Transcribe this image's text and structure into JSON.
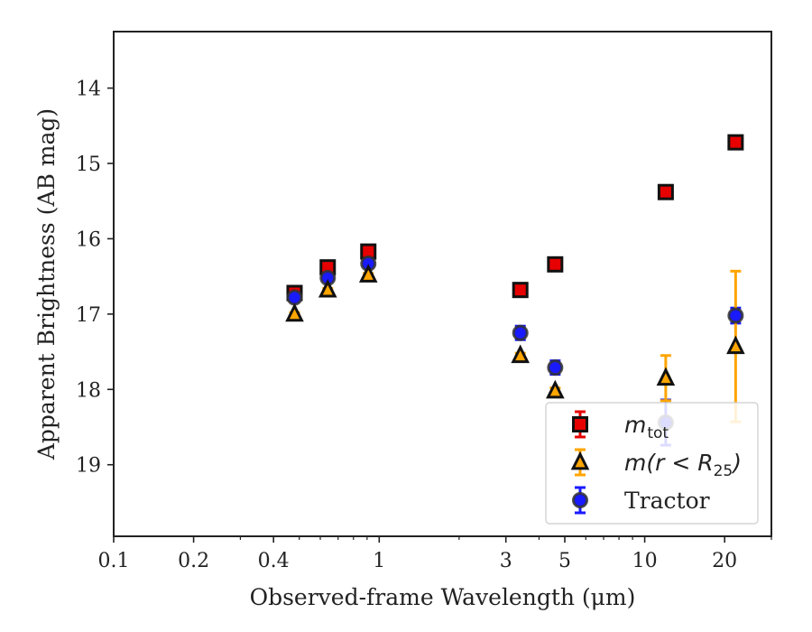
{
  "chart_data": {
    "type": "scatter",
    "xlabel": "Observed-frame Wavelength (μm)",
    "ylabel": "Apparent Brightness (AB mag)",
    "xscale": "log",
    "xlim": [
      0.1,
      30
    ],
    "ylim": [
      19.95,
      13.25
    ],
    "y_inverted": true,
    "x_ticks": [
      {
        "value": 0.1,
        "label": "0.1"
      },
      {
        "value": 0.2,
        "label": "0.2"
      },
      {
        "value": 0.4,
        "label": "0.4"
      },
      {
        "value": 1,
        "label": "1"
      },
      {
        "value": 3,
        "label": "3"
      },
      {
        "value": 5,
        "label": "5"
      },
      {
        "value": 10,
        "label": "10"
      },
      {
        "value": 20,
        "label": "20"
      }
    ],
    "x_minor_ticks": [
      0.3,
      0.5,
      0.6,
      0.7,
      0.8,
      0.9,
      2,
      4,
      6,
      7,
      8,
      9,
      30
    ],
    "y_ticks": [
      {
        "value": 14,
        "label": "14"
      },
      {
        "value": 15,
        "label": "15"
      },
      {
        "value": 16,
        "label": "16"
      },
      {
        "value": 17,
        "label": "17"
      },
      {
        "value": 18,
        "label": "18"
      },
      {
        "value": 19,
        "label": "19"
      }
    ],
    "legend_position": "lower-right",
    "series": [
      {
        "name": "m_tot",
        "marker": "square",
        "color": "#e60000",
        "edge_color": "#111111",
        "points": [
          {
            "x": 0.48,
            "y": 16.72,
            "err": 0.02
          },
          {
            "x": 0.64,
            "y": 16.38,
            "err": 0.02
          },
          {
            "x": 0.91,
            "y": 16.17,
            "err": 0.02
          },
          {
            "x": 3.4,
            "y": 16.68,
            "err": 0.02
          },
          {
            "x": 4.6,
            "y": 16.34,
            "err": 0.03
          },
          {
            "x": 12,
            "y": 15.38,
            "err": 0.04
          },
          {
            "x": 22,
            "y": 14.72,
            "err": 0.04
          }
        ]
      },
      {
        "name": "m(r<R25)",
        "marker": "triangle",
        "color": "#ffa500",
        "edge_color": "#111111",
        "points": [
          {
            "x": 0.48,
            "y": 17.0,
            "err": 0.02
          },
          {
            "x": 0.64,
            "y": 16.68,
            "err": 0.02
          },
          {
            "x": 0.91,
            "y": 16.48,
            "err": 0.02
          },
          {
            "x": 3.4,
            "y": 17.55,
            "err": 0.03
          },
          {
            "x": 4.6,
            "y": 18.02,
            "err": 0.04
          },
          {
            "x": 12,
            "y": 17.85,
            "err": 0.3
          },
          {
            "x": 22,
            "y": 17.43,
            "err": 1.0
          }
        ]
      },
      {
        "name": "Tractor",
        "marker": "circle",
        "color": "#1a1aff",
        "edge_color": "#333333",
        "points": [
          {
            "x": 0.48,
            "y": 16.78,
            "err": 0.03
          },
          {
            "x": 0.64,
            "y": 16.52,
            "err": 0.03
          },
          {
            "x": 0.91,
            "y": 16.33,
            "err": 0.03
          },
          {
            "x": 3.4,
            "y": 17.25,
            "err": 0.09
          },
          {
            "x": 4.6,
            "y": 17.71,
            "err": 0.09
          },
          {
            "x": 12,
            "y": 18.44,
            "err": 0.3
          },
          {
            "x": 22,
            "y": 17.02,
            "err": 0.1
          }
        ]
      }
    ]
  }
}
